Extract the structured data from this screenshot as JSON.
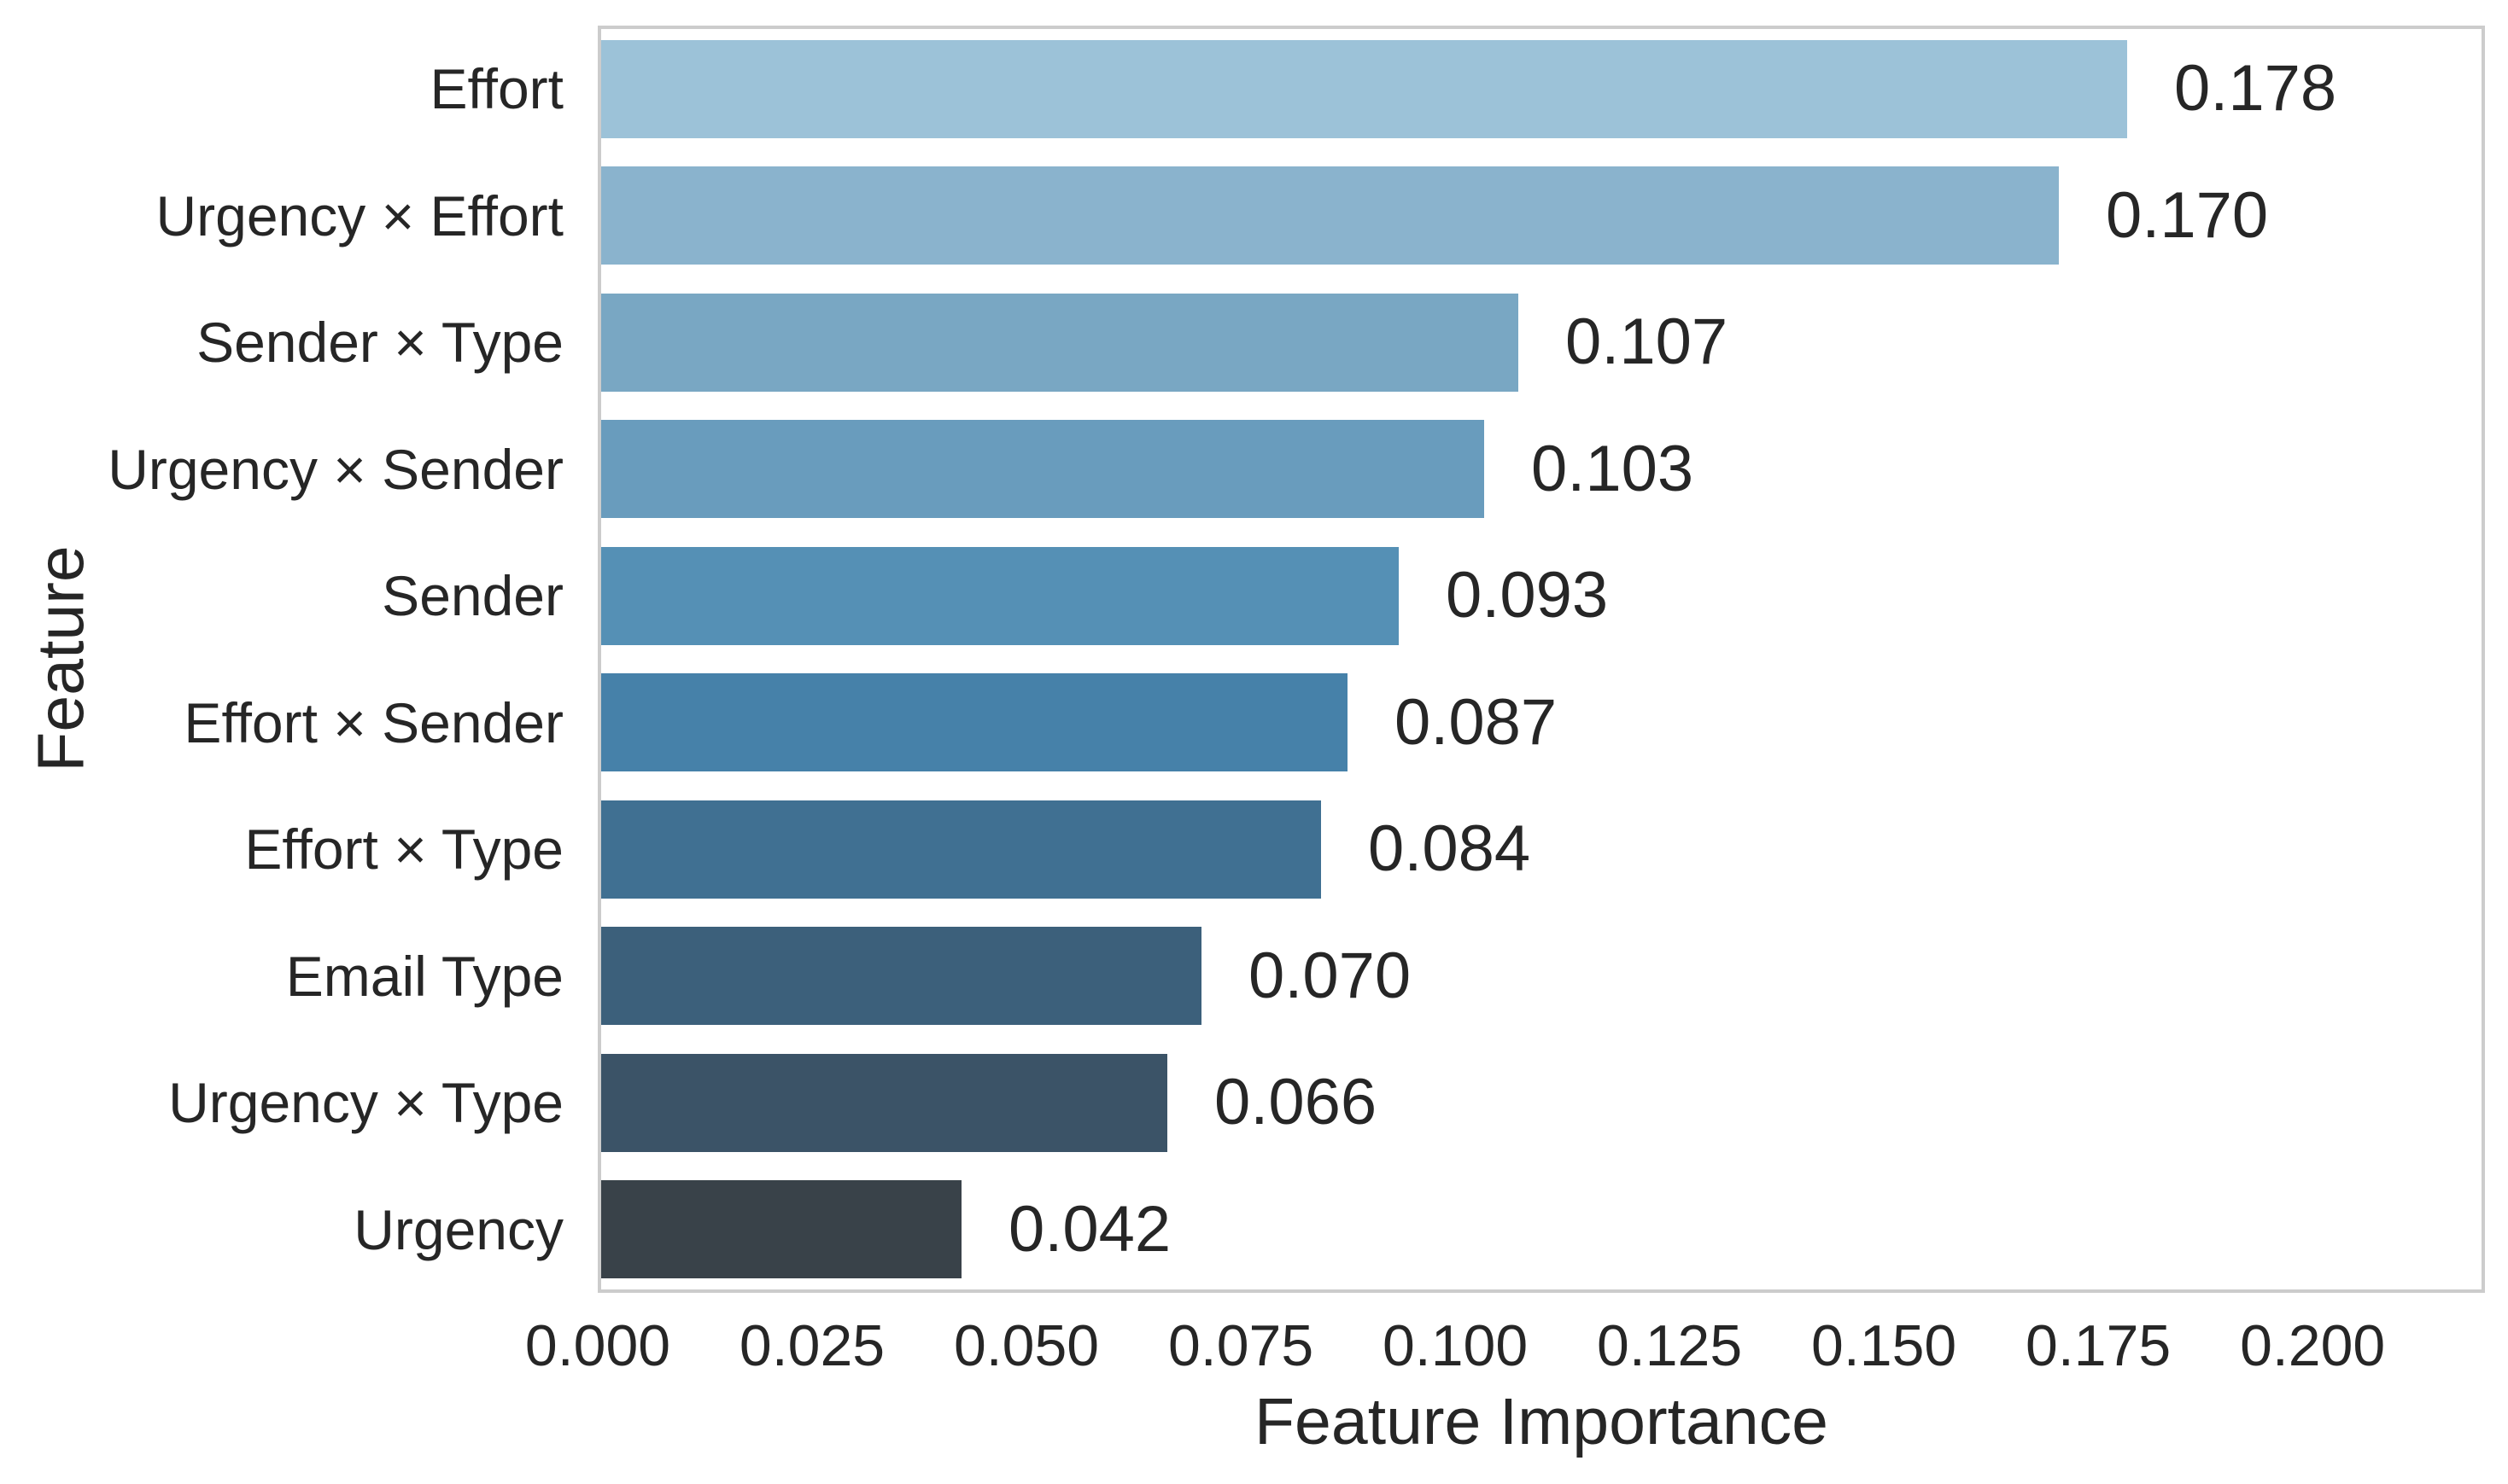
{
  "chart_data": {
    "type": "bar",
    "orientation": "horizontal",
    "title": "",
    "xlabel": "Feature Importance",
    "ylabel": "Feature",
    "categories": [
      "Effort",
      "Urgency × Effort",
      "Sender × Type",
      "Urgency × Sender",
      "Sender",
      "Effort × Sender",
      "Effort × Type",
      "Email Type",
      "Urgency × Type",
      "Urgency"
    ],
    "values": [
      0.178,
      0.17,
      0.107,
      0.103,
      0.093,
      0.087,
      0.084,
      0.07,
      0.066,
      0.042
    ],
    "value_labels": [
      "0.178",
      "0.170",
      "0.107",
      "0.103",
      "0.093",
      "0.087",
      "0.084",
      "0.070",
      "0.066",
      "0.042"
    ],
    "bar_colors": [
      "#9cc2d8",
      "#8ab3cd",
      "#79a7c3",
      "#699cbd",
      "#5590b5",
      "#4681a9",
      "#407092",
      "#3c607b",
      "#3b5367",
      "#394249"
    ],
    "x_tick_labels": [
      "0.000",
      "0.025",
      "0.050",
      "0.075",
      "0.100",
      "0.125",
      "0.150",
      "0.175",
      "0.200"
    ],
    "x_tick_values": [
      0.0,
      0.025,
      0.05,
      0.075,
      0.1,
      0.125,
      0.15,
      0.175,
      0.2
    ],
    "xlim": [
      0,
      0.2201
    ],
    "grid": false,
    "legend": "none",
    "background_color": "#ffffff",
    "spine_color": "#cccccc",
    "text_color": "#262626"
  }
}
